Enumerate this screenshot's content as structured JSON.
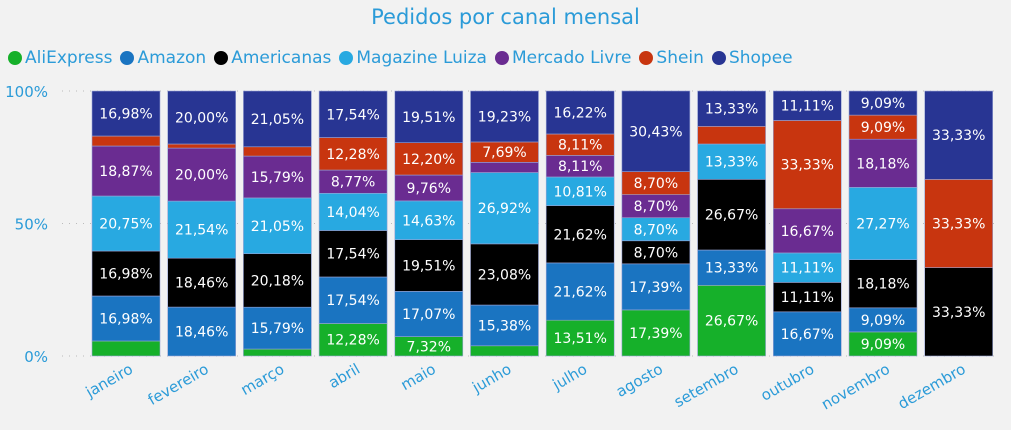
{
  "chart_data": {
    "type": "bar",
    "stacked": "100%",
    "title": "Pedidos por canal mensal",
    "legend_position": "top-left",
    "categories": [
      "janeiro",
      "fevereiro",
      "março",
      "abril",
      "maio",
      "junho",
      "julho",
      "agosto",
      "setembro",
      "outubro",
      "novembro",
      "dezembro"
    ],
    "yticks": [
      "0%",
      "50%",
      "100%"
    ],
    "ylim": [
      0,
      100
    ],
    "series": [
      {
        "name": "AliExpress",
        "color": "#16b02a",
        "values": [
          5.66,
          0,
          2.63,
          12.28,
          7.32,
          3.85,
          13.51,
          17.39,
          26.67,
          0,
          9.09,
          0
        ]
      },
      {
        "name": "Amazon",
        "color": "#1a74c1",
        "values": [
          16.98,
          18.46,
          15.79,
          17.54,
          17.07,
          15.38,
          21.62,
          17.39,
          13.33,
          16.67,
          9.09,
          0
        ]
      },
      {
        "name": "Americanas",
        "color": "#000000",
        "values": [
          16.98,
          18.46,
          20.18,
          17.54,
          19.51,
          23.08,
          21.62,
          8.7,
          26.67,
          11.11,
          18.18,
          33.33
        ]
      },
      {
        "name": "Magazine Luiza",
        "color": "#28a9e1",
        "values": [
          20.75,
          21.54,
          21.05,
          14.04,
          14.63,
          26.92,
          10.81,
          8.7,
          13.33,
          11.11,
          27.27,
          0
        ]
      },
      {
        "name": "Mercado Livre",
        "color": "#6a2c91",
        "values": [
          18.87,
          20.0,
          15.79,
          8.77,
          9.76,
          3.85,
          8.11,
          8.7,
          0,
          16.67,
          18.18,
          0
        ]
      },
      {
        "name": "Shein",
        "color": "#c8350f",
        "values": [
          3.77,
          1.54,
          3.51,
          12.28,
          12.2,
          7.69,
          8.11,
          8.7,
          6.67,
          33.33,
          9.09,
          33.33
        ]
      },
      {
        "name": "Shopee",
        "color": "#283593",
        "values": [
          16.98,
          20.0,
          21.05,
          17.54,
          19.51,
          19.23,
          16.22,
          30.43,
          13.33,
          11.11,
          9.09,
          33.33
        ]
      }
    ]
  }
}
